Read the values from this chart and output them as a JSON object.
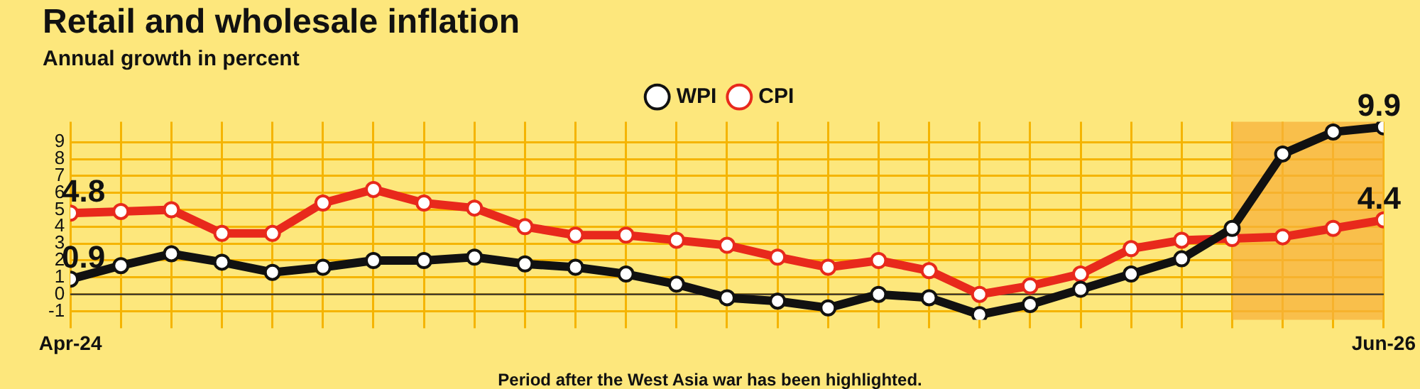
{
  "chart_data": {
    "type": "line",
    "title": "Retail and wholesale inflation",
    "subtitle": "Annual growth in percent",
    "x": [
      "2024-04",
      "2024-05",
      "2024-06",
      "2024-07",
      "2024-08",
      "2024-09",
      "2024-10",
      "2024-11",
      "2024-12",
      "2025-01",
      "2025-02",
      "2025-03",
      "2025-04",
      "2025-05",
      "2025-06",
      "2025-07",
      "2025-08",
      "2025-09",
      "2025-10",
      "2025-11",
      "2025-12",
      "2026-01",
      "2026-02",
      "2026-03",
      "2026-04",
      "2026-05",
      "2026-06"
    ],
    "series": [
      {
        "name": "WPI",
        "color": "#111111",
        "values": [
          0.9,
          1.7,
          2.4,
          1.9,
          1.3,
          1.6,
          2.0,
          2.0,
          2.2,
          1.8,
          1.6,
          1.2,
          0.6,
          -0.2,
          -0.4,
          -0.8,
          0.0,
          -0.2,
          -1.2,
          -0.6,
          0.3,
          1.2,
          2.1,
          3.9,
          8.3,
          9.6,
          9.9
        ],
        "value_labels": [
          "0.9",
          null,
          null,
          null,
          null,
          null,
          null,
          null,
          null,
          null,
          null,
          null,
          null,
          null,
          null,
          null,
          null,
          null,
          null,
          null,
          null,
          null,
          null,
          null,
          null,
          null,
          "9.9"
        ]
      },
      {
        "name": "CPI",
        "color": "#e8291c",
        "values": [
          4.8,
          4.9,
          5.0,
          3.6,
          3.6,
          5.4,
          6.2,
          5.4,
          5.1,
          4.0,
          3.5,
          3.5,
          3.2,
          2.9,
          2.2,
          1.6,
          2.0,
          1.4,
          0.0,
          0.5,
          1.2,
          2.7,
          3.2,
          3.3,
          3.4,
          3.9,
          4.4
        ],
        "value_labels": [
          "4.8",
          null,
          null,
          null,
          null,
          null,
          null,
          null,
          null,
          null,
          null,
          null,
          null,
          null,
          null,
          null,
          null,
          null,
          null,
          null,
          null,
          null,
          null,
          null,
          null,
          null,
          "4.4"
        ]
      }
    ],
    "xlim": [
      "2024-04",
      "2026-06"
    ],
    "xticks": [
      {
        "value": "2024-04",
        "label": "Apr-24"
      },
      {
        "value": "2024-05",
        "label": null
      },
      {
        "value": "2024-06",
        "label": null
      },
      {
        "value": "2024-07",
        "label": null
      },
      {
        "value": "2024-08",
        "label": null
      },
      {
        "value": "2024-09",
        "label": null
      },
      {
        "value": "2024-10",
        "label": null
      },
      {
        "value": "2024-11",
        "label": null
      },
      {
        "value": "2024-12",
        "label": null
      },
      {
        "value": "2025-01",
        "label": null
      },
      {
        "value": "2025-02",
        "label": null
      },
      {
        "value": "2025-03",
        "label": null
      },
      {
        "value": "2025-04",
        "label": null
      },
      {
        "value": "2025-05",
        "label": null
      },
      {
        "value": "2025-06",
        "label": null
      },
      {
        "value": "2025-07",
        "label": null
      },
      {
        "value": "2025-08",
        "label": null
      },
      {
        "value": "2025-09",
        "label": null
      },
      {
        "value": "2025-10",
        "label": null
      },
      {
        "value": "2025-11",
        "label": null
      },
      {
        "value": "2025-12",
        "label": null
      },
      {
        "value": "2026-01",
        "label": null
      },
      {
        "value": "2026-02",
        "label": null
      },
      {
        "value": "2026-03",
        "label": null
      },
      {
        "value": "2026-04",
        "label": null
      },
      {
        "value": "2026-05",
        "label": null
      },
      {
        "value": "2026-06",
        "label": "Jun-26"
      }
    ],
    "ylim": [
      -1.5,
      10.2
    ],
    "yticks": [
      -1,
      0,
      1,
      2,
      3,
      4,
      5,
      6,
      7,
      8,
      9
    ],
    "bands": [
      {
        "axis": "x",
        "from": "2026-03",
        "to": "2026-06",
        "color": "#f7b23b"
      }
    ],
    "annotations": [
      "Period after the West Asia war has been highlighted."
    ],
    "grid": true,
    "legend": "top",
    "marker": "circle",
    "line_style": "solid"
  }
}
